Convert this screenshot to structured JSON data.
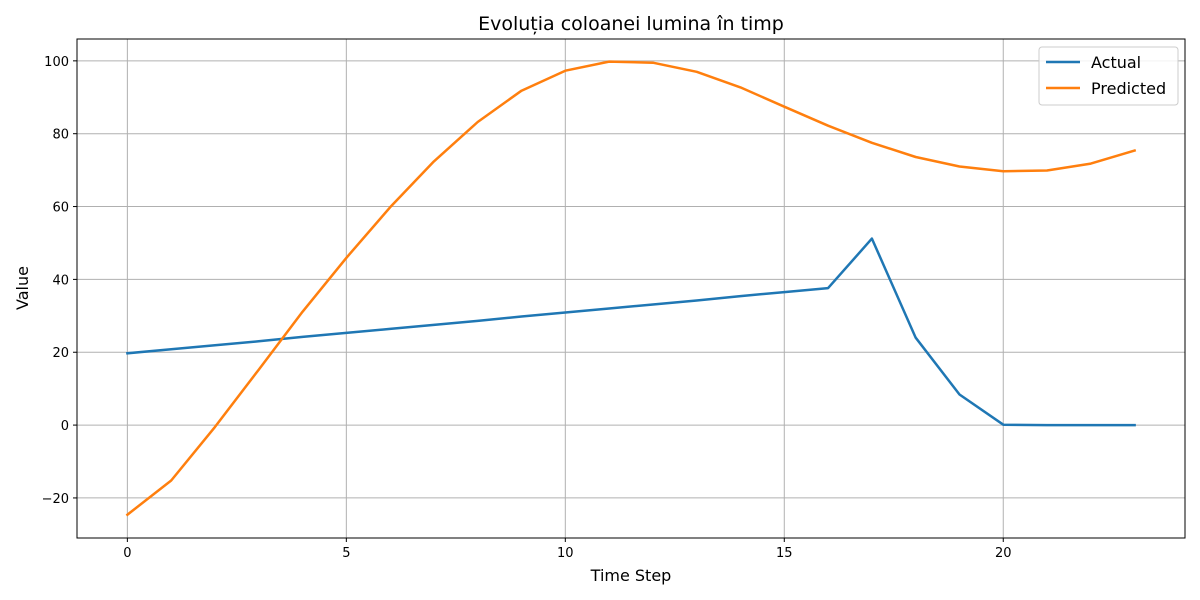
{
  "chart_data": {
    "type": "line",
    "title": "Evoluția coloanei lumina în timp",
    "xlabel": "Time Step",
    "ylabel": "Value",
    "xlim": [
      -1.15,
      24.15
    ],
    "ylim": [
      -31,
      106
    ],
    "xticks": [
      0,
      5,
      10,
      15,
      20
    ],
    "yticks": [
      -20,
      0,
      20,
      40,
      60,
      80,
      100
    ],
    "ytick_labels": [
      "−20",
      "0",
      "20",
      "40",
      "60",
      "80",
      "100"
    ],
    "grid": true,
    "legend_position": "top-right",
    "x": [
      0,
      1,
      2,
      3,
      4,
      5,
      6,
      7,
      8,
      9,
      10,
      11,
      12,
      13,
      14,
      15,
      16,
      17,
      18,
      19,
      20,
      21,
      22,
      23
    ],
    "series": [
      {
        "name": "Actual",
        "color": "#1f77b4",
        "values": [
          19.7,
          20.8,
          21.9,
          23.0,
          24.2,
          25.3,
          26.4,
          27.5,
          28.6,
          29.8,
          30.9,
          32.0,
          33.1,
          34.2,
          35.4,
          36.5,
          37.6,
          51.2,
          24.0,
          8.4,
          0.1,
          0.0,
          0.0,
          0.0
        ]
      },
      {
        "name": "Predicted",
        "color": "#ff7f0e",
        "values": [
          -24.6,
          -15.2,
          -0.5,
          15.2,
          31.1,
          45.9,
          59.8,
          72.4,
          83.2,
          91.8,
          97.3,
          99.8,
          99.5,
          97.0,
          92.7,
          87.4,
          82.2,
          77.5,
          73.6,
          71.0,
          69.7,
          69.9,
          71.8,
          75.4
        ]
      }
    ]
  }
}
